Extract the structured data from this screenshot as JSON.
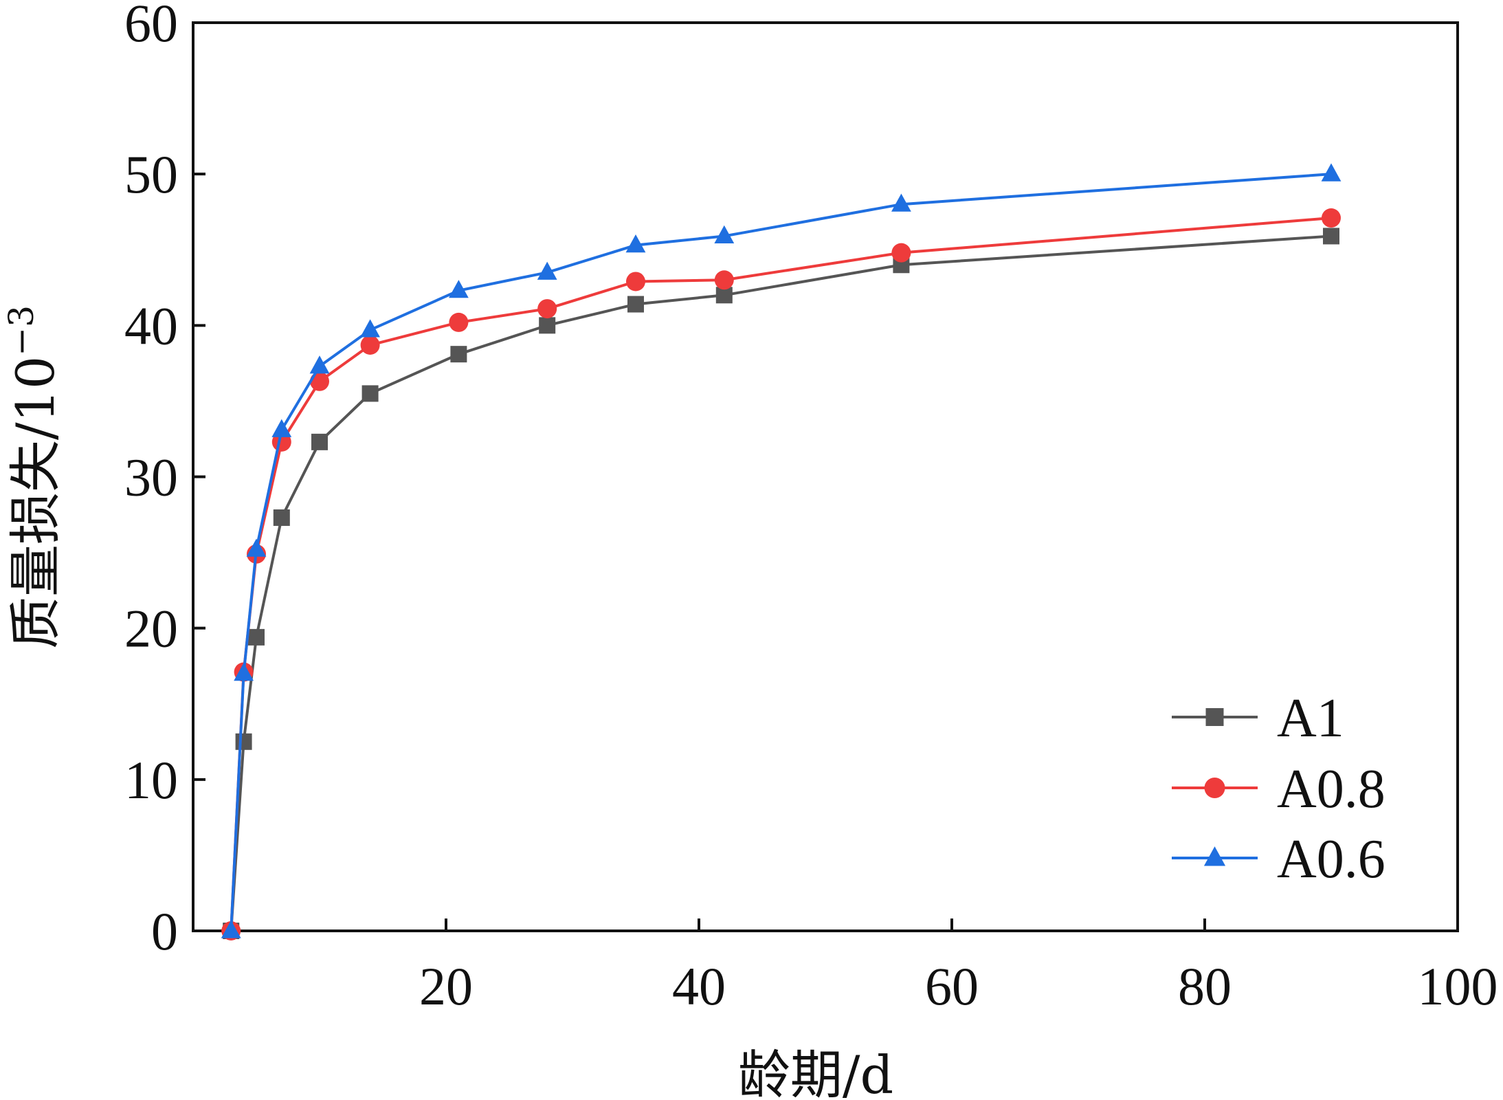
{
  "chart_data": {
    "type": "line",
    "xlabel": "龄期/d",
    "ylabel_main": "质量损失/10",
    "ylabel_exp": "−3",
    "xlim": [
      0,
      100
    ],
    "ylim": [
      0,
      60
    ],
    "xticks": [
      0,
      20,
      40,
      60,
      80,
      100
    ],
    "yticks": [
      0,
      10,
      20,
      30,
      40,
      50,
      60
    ],
    "xtick_labels": [
      "0",
      "20",
      "40",
      "60",
      "80",
      "100"
    ],
    "ytick_labels": [
      "0",
      "10",
      "20",
      "30",
      "40",
      "50",
      "60"
    ],
    "grid": false,
    "legend_position": "bottom-right",
    "series": [
      {
        "name": "A1",
        "color": "#555555",
        "marker": "square",
        "x": [
          3,
          4,
          5,
          7,
          10,
          14,
          21,
          28,
          35,
          42,
          56,
          90
        ],
        "y": [
          0,
          12.5,
          19.4,
          27.3,
          32.3,
          35.5,
          38.1,
          40.0,
          41.4,
          42.0,
          44.0,
          45.9
        ]
      },
      {
        "name": "A0.8",
        "color": "#ee3b3b",
        "marker": "circle",
        "x": [
          3,
          4,
          5,
          7,
          10,
          14,
          21,
          28,
          35,
          42,
          56,
          90
        ],
        "y": [
          0,
          17.1,
          24.9,
          32.3,
          36.3,
          38.7,
          40.2,
          41.1,
          42.9,
          43.0,
          44.8,
          47.1
        ]
      },
      {
        "name": "A0.6",
        "color": "#1f6fe0",
        "marker": "triangle",
        "x": [
          3,
          4,
          5,
          7,
          10,
          14,
          21,
          28,
          35,
          42,
          56,
          90
        ],
        "y": [
          0,
          17.0,
          25.2,
          33.1,
          37.3,
          39.7,
          42.3,
          43.5,
          45.3,
          45.9,
          48.0,
          50.0
        ]
      }
    ]
  }
}
